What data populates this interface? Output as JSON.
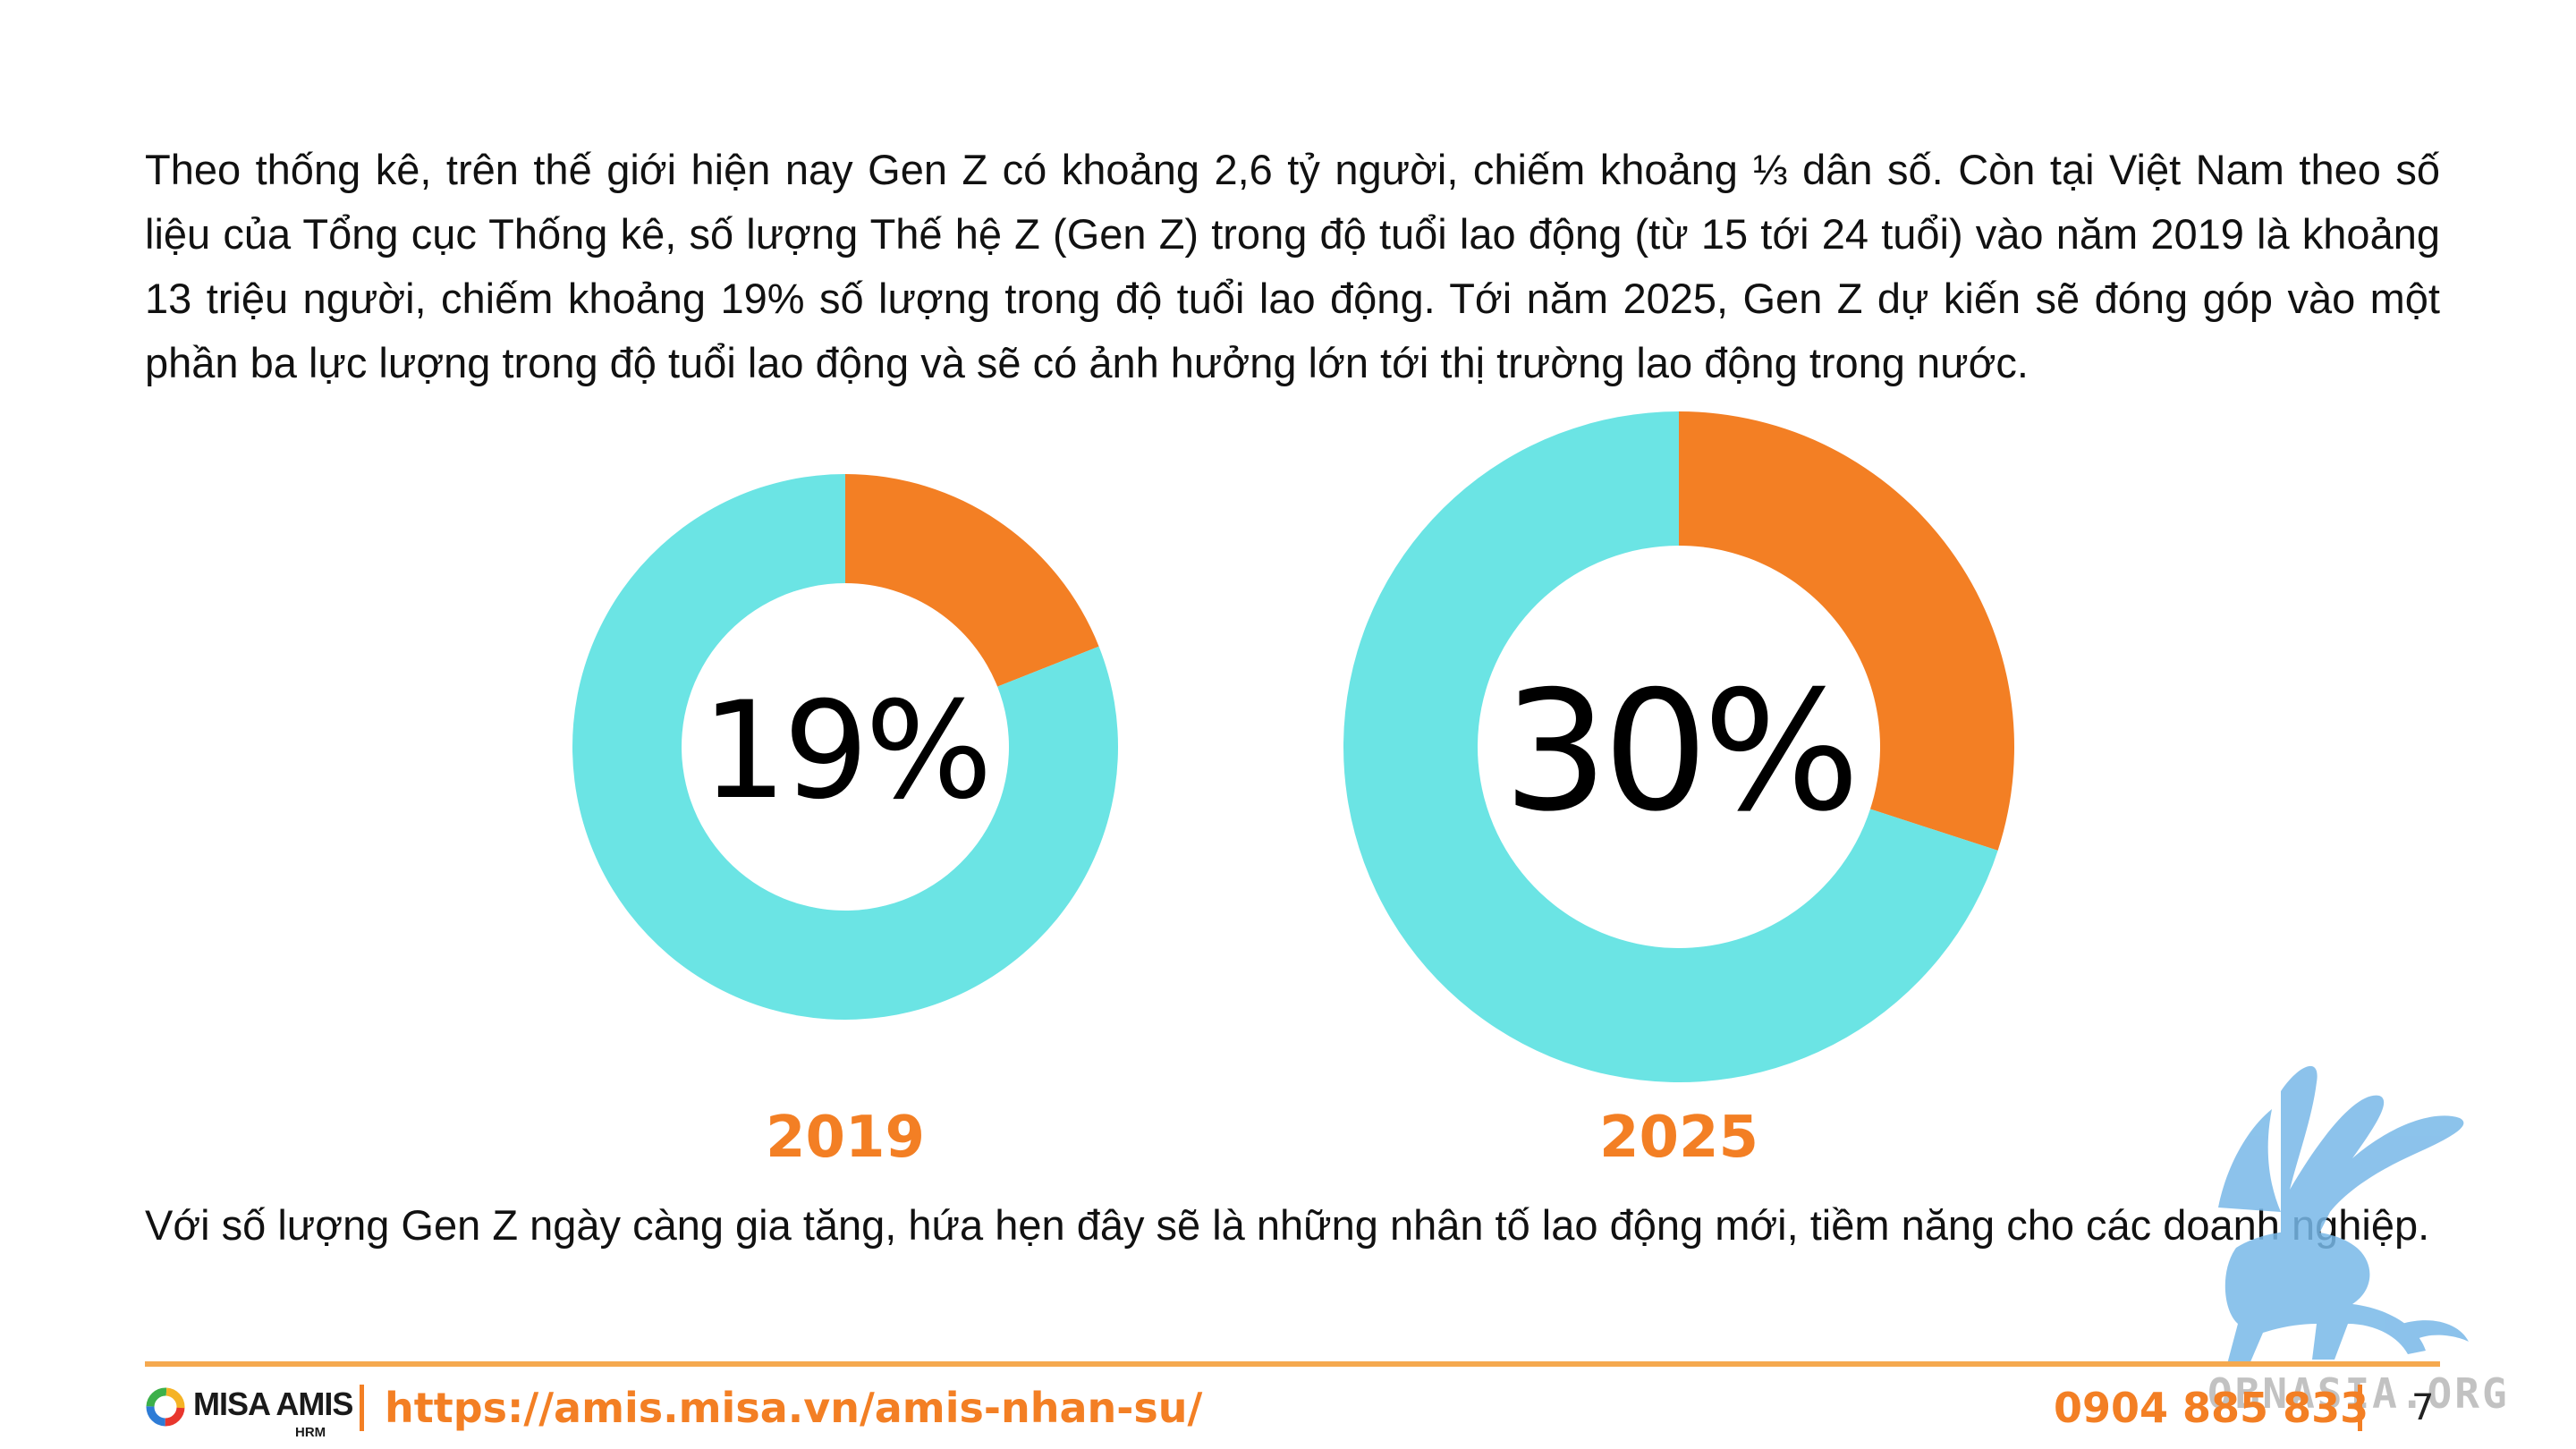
{
  "intro_text": "Theo thống kê, trên thế giới hiện nay Gen Z có khoảng 2,6 tỷ người, chiếm khoảng ⅓ dân số. Còn tại Việt Nam theo số liệu của Tổng cục Thống kê, số lượng Thế hệ Z (Gen Z) trong độ tuổi lao động (từ 15 tới 24 tuổi) vào năm 2019 là khoảng 13 triệu người, chiếm khoảng 19% số lượng trong độ tuổi lao động. Tới năm 2025, Gen Z dự kiến sẽ đóng góp vào một phần ba lực lượng trong độ tuổi lao động và sẽ có ảnh hưởng lớn tới thị trường lao động trong nước.",
  "outro_text": "Với số lượng Gen Z ngày càng gia tăng, hứa hẹn đây sẽ là những nhân tố lao động mới, tiềm năng cho các doanh nghiệp.",
  "colors": {
    "accent": "#F37F24",
    "remainder": "#6BE4E4",
    "rule": "#F5A94F"
  },
  "chart_data": [
    {
      "type": "pie",
      "variant": "donut",
      "center_label": "19%",
      "caption": "2019",
      "slices": [
        {
          "value": 19,
          "color": "#F37F24"
        },
        {
          "value": 81,
          "color": "#6BE4E4"
        }
      ]
    },
    {
      "type": "pie",
      "variant": "donut",
      "center_label": "30%",
      "caption": "2025",
      "slices": [
        {
          "value": 30,
          "color": "#F37F24"
        },
        {
          "value": 70,
          "color": "#6BE4E4"
        }
      ]
    }
  ],
  "footer": {
    "logo_text": "MISA AMIS",
    "logo_sub": "HRM",
    "link": "https://amis.misa.vn/amis-nhan-su/",
    "phone": "0904 885 833",
    "page_number": "7"
  },
  "watermark": {
    "text": "OBNASIA.ORG",
    "icon": "griffin-icon"
  }
}
